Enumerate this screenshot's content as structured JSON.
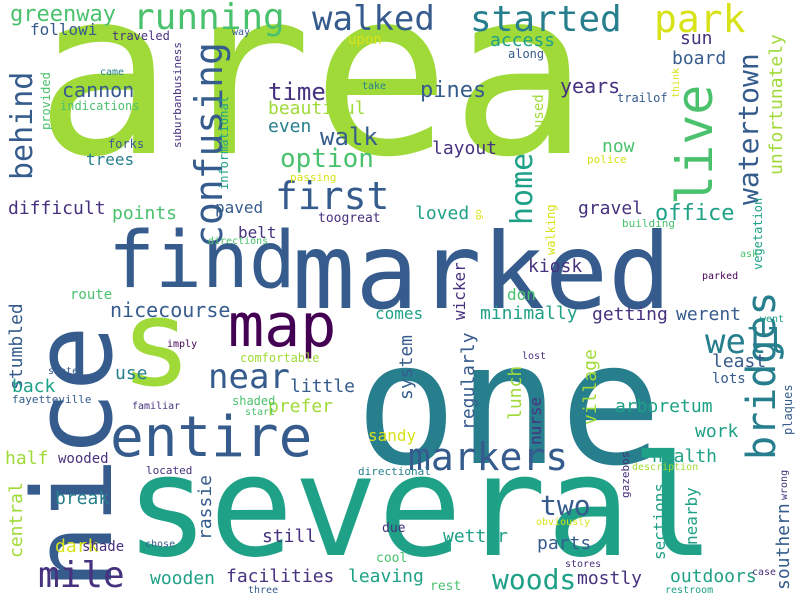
{
  "palette": {
    "background": "#ffffff",
    "lime": "#a0da39",
    "green": "#4ac16d",
    "teal": "#1fa187",
    "cyan": "#277f8e",
    "blue": "#365c8d",
    "indigo": "#46327e",
    "purple": "#440154",
    "yellow": "#d8e219"
  },
  "words": [
    {
      "text": "area",
      "color": "lime",
      "weight": 64
    },
    {
      "text": "marked",
      "color": "blue",
      "weight": 40
    },
    {
      "text": "one",
      "color": "cyan",
      "weight": 40
    },
    {
      "text": "several",
      "color": "teal",
      "weight": 36
    },
    {
      "text": "nice",
      "color": "blue",
      "weight": 34
    },
    {
      "text": "s",
      "color": "lime",
      "weight": 30
    },
    {
      "text": "find",
      "color": "blue",
      "weight": 24
    },
    {
      "text": "entire",
      "color": "blue",
      "weight": 18
    },
    {
      "text": "map",
      "color": "purple",
      "weight": 14
    },
    {
      "text": "live",
      "color": "green",
      "weight": 12
    },
    {
      "text": "bridges",
      "color": "cyan",
      "weight": 10
    },
    {
      "text": "markers",
      "color": "blue",
      "weight": 10
    },
    {
      "text": "mile",
      "color": "indigo",
      "weight": 10
    },
    {
      "text": "first",
      "color": "blue",
      "weight": 9
    },
    {
      "text": "confusing",
      "color": "blue",
      "weight": 8
    },
    {
      "text": "walked",
      "color": "blue",
      "weight": 8
    },
    {
      "text": "started",
      "color": "cyan",
      "weight": 8
    },
    {
      "text": "park",
      "color": "yellow",
      "weight": 8
    },
    {
      "text": "running",
      "color": "green",
      "weight": 8
    },
    {
      "text": "near",
      "color": "blue",
      "weight": 8
    },
    {
      "text": "home",
      "color": "teal",
      "weight": 8
    },
    {
      "text": "behind",
      "color": "blue",
      "weight": 7
    },
    {
      "text": "watertown",
      "color": "blue",
      "weight": 7
    },
    {
      "text": "well",
      "color": "cyan",
      "weight": 7
    },
    {
      "text": "option",
      "color": "green",
      "weight": 6
    },
    {
      "text": "woods",
      "color": "teal",
      "weight": 6
    },
    {
      "text": "two",
      "color": "blue",
      "weight": 6
    },
    {
      "text": "walk",
      "color": "blue",
      "weight": 6
    },
    {
      "text": "time",
      "color": "indigo",
      "weight": 6
    },
    {
      "text": "greenway",
      "color": "green",
      "weight": 5
    },
    {
      "text": "access",
      "color": "teal",
      "weight": 5
    },
    {
      "text": "years",
      "color": "indigo",
      "weight": 5
    },
    {
      "text": "pines",
      "color": "blue",
      "weight": 5
    },
    {
      "text": "sun",
      "color": "indigo",
      "weight": 5
    },
    {
      "text": "board",
      "color": "blue",
      "weight": 5
    },
    {
      "text": "unfortunately",
      "color": "lime",
      "weight": 5
    },
    {
      "text": "cannon",
      "color": "blue",
      "weight": 5
    },
    {
      "text": "beautiful",
      "color": "lime",
      "weight": 5
    },
    {
      "text": "even",
      "color": "cyan",
      "weight": 5
    },
    {
      "text": "layout",
      "color": "indigo",
      "weight": 5
    },
    {
      "text": "now",
      "color": "green",
      "weight": 5
    },
    {
      "text": "trees",
      "color": "cyan",
      "weight": 5
    },
    {
      "text": "difficult",
      "color": "indigo",
      "weight": 5
    },
    {
      "text": "points",
      "color": "green",
      "weight": 5
    },
    {
      "text": "paved",
      "color": "blue",
      "weight": 5
    },
    {
      "text": "loved",
      "color": "teal",
      "weight": 5
    },
    {
      "text": "gravel",
      "color": "indigo",
      "weight": 5
    },
    {
      "text": "office",
      "color": "teal",
      "weight": 5
    },
    {
      "text": "belt",
      "color": "indigo",
      "weight": 5
    },
    {
      "text": "kiosk",
      "color": "indigo",
      "weight": 5
    },
    {
      "text": "don",
      "color": "green",
      "weight": 5
    },
    {
      "text": "nicecourse",
      "color": "blue",
      "weight": 5
    },
    {
      "text": "minimally",
      "color": "teal",
      "weight": 5
    },
    {
      "text": "getting",
      "color": "indigo",
      "weight": 5
    },
    {
      "text": "werent",
      "color": "blue",
      "weight": 5
    },
    {
      "text": "comes",
      "color": "teal",
      "weight": 5
    },
    {
      "text": "stumbled",
      "color": "blue",
      "weight": 5
    },
    {
      "text": "wicker",
      "color": "indigo",
      "weight": 5
    },
    {
      "text": "least",
      "color": "blue",
      "weight": 5
    },
    {
      "text": "lots",
      "color": "blue",
      "weight": 4
    },
    {
      "text": "back",
      "color": "teal",
      "weight": 5
    },
    {
      "text": "use",
      "color": "cyan",
      "weight": 5
    },
    {
      "text": "little",
      "color": "blue",
      "weight": 5
    },
    {
      "text": "prefer",
      "color": "lime",
      "weight": 5
    },
    {
      "text": "system",
      "color": "blue",
      "weight": 5
    },
    {
      "text": "regularly",
      "color": "blue",
      "weight": 5
    },
    {
      "text": "lunch",
      "color": "lime",
      "weight": 5
    },
    {
      "text": "nurse",
      "color": "indigo",
      "weight": 4
    },
    {
      "text": "village",
      "color": "lime",
      "weight": 5
    },
    {
      "text": "arboretum",
      "color": "teal",
      "weight": 5
    },
    {
      "text": "work",
      "color": "teal",
      "weight": 5
    },
    {
      "text": "health",
      "color": "teal",
      "weight": 5
    },
    {
      "text": "half",
      "color": "lime",
      "weight": 5
    },
    {
      "text": "wooded",
      "color": "indigo",
      "weight": 4
    },
    {
      "text": "sandy",
      "color": "yellow",
      "weight": 5
    },
    {
      "text": "break",
      "color": "cyan",
      "weight": 5
    },
    {
      "text": "central",
      "color": "lime",
      "weight": 5
    },
    {
      "text": "dark",
      "color": "yellow",
      "weight": 5
    },
    {
      "text": "shade",
      "color": "indigo",
      "weight": 4
    },
    {
      "text": "rassie",
      "color": "blue",
      "weight": 5
    },
    {
      "text": "still",
      "color": "indigo",
      "weight": 5
    },
    {
      "text": "wetter",
      "color": "teal",
      "weight": 5
    },
    {
      "text": "parts",
      "color": "blue",
      "weight": 5
    },
    {
      "text": "sections",
      "color": "teal",
      "weight": 5
    },
    {
      "text": "nearby",
      "color": "teal",
      "weight": 5
    },
    {
      "text": "southern",
      "color": "blue",
      "weight": 5
    },
    {
      "text": "wooden",
      "color": "teal",
      "weight": 5
    },
    {
      "text": "facilities",
      "color": "indigo",
      "weight": 5
    },
    {
      "text": "leaving",
      "color": "teal",
      "weight": 5
    },
    {
      "text": "mostly",
      "color": "indigo",
      "weight": 5
    },
    {
      "text": "outdoors",
      "color": "teal",
      "weight": 5
    },
    {
      "text": "followi",
      "color": "blue",
      "weight": 4
    },
    {
      "text": "upon",
      "color": "yellow",
      "weight": 4
    },
    {
      "text": "along",
      "color": "blue",
      "weight": 3
    },
    {
      "text": "used",
      "color": "lime",
      "weight": 4
    },
    {
      "text": "traveled",
      "color": "indigo",
      "weight": 3
    },
    {
      "text": "provided",
      "color": "green",
      "weight": 3
    },
    {
      "text": "came",
      "color": "cyan",
      "weight": 2
    },
    {
      "text": "indications",
      "color": "green",
      "weight": 3
    },
    {
      "text": "take",
      "color": "cyan",
      "weight": 2
    },
    {
      "text": "trailof",
      "color": "blue",
      "weight": 3
    },
    {
      "text": "think",
      "color": "yellow",
      "weight": 2
    },
    {
      "text": "way",
      "color": "blue",
      "weight": 2
    },
    {
      "text": "forks",
      "color": "blue",
      "weight": 3
    },
    {
      "text": "suburbanbusiness",
      "color": "indigo",
      "weight": 3
    },
    {
      "text": "informational",
      "color": "teal",
      "weight": 3
    },
    {
      "text": "passing",
      "color": "yellow",
      "weight": 3
    },
    {
      "text": "police",
      "color": "yellow",
      "weight": 2
    },
    {
      "text": "toogreat",
      "color": "indigo",
      "weight": 3
    },
    {
      "text": "go",
      "color": "yellow",
      "weight": 2
    },
    {
      "text": "building",
      "color": "green",
      "weight": 2
    },
    {
      "text": "walking",
      "color": "yellow",
      "weight": 3
    },
    {
      "text": "directions",
      "color": "green",
      "weight": 2
    },
    {
      "text": "vegetation",
      "color": "teal",
      "weight": 3
    },
    {
      "text": "ask",
      "color": "green",
      "weight": 2
    },
    {
      "text": "parked",
      "color": "purple",
      "weight": 2
    },
    {
      "text": "route",
      "color": "green",
      "weight": 4
    },
    {
      "text": "went",
      "color": "teal",
      "weight": 2
    },
    {
      "text": "imply",
      "color": "purple",
      "weight": 2
    },
    {
      "text": "comfortable",
      "color": "lime",
      "weight": 3
    },
    {
      "text": "lost",
      "color": "indigo",
      "weight": 2
    },
    {
      "text": "states",
      "color": "blue",
      "weight": 2
    },
    {
      "text": "fayetteville",
      "color": "blue",
      "weight": 2
    },
    {
      "text": "shaded",
      "color": "green",
      "weight": 3
    },
    {
      "text": "start",
      "color": "green",
      "weight": 2
    },
    {
      "text": "familiar",
      "color": "indigo",
      "weight": 2
    },
    {
      "text": "plaques",
      "color": "blue",
      "weight": 3
    },
    {
      "text": "located",
      "color": "indigo",
      "weight": 2
    },
    {
      "text": "directional",
      "color": "cyan",
      "weight": 2
    },
    {
      "text": "gazebos",
      "color": "indigo",
      "weight": 2
    },
    {
      "text": "description",
      "color": "lime",
      "weight": 2
    },
    {
      "text": "wrong",
      "color": "indigo",
      "weight": 2
    },
    {
      "text": "due",
      "color": "indigo",
      "weight": 3
    },
    {
      "text": "obviously",
      "color": "yellow",
      "weight": 2
    },
    {
      "text": "chose",
      "color": "blue",
      "weight": 2
    },
    {
      "text": "cool",
      "color": "green",
      "weight": 3
    },
    {
      "text": "stores",
      "color": "indigo",
      "weight": 2
    },
    {
      "text": "case",
      "color": "indigo",
      "weight": 2
    },
    {
      "text": "rest",
      "color": "green",
      "weight": 3
    },
    {
      "text": "three",
      "color": "blue",
      "weight": 2
    },
    {
      "text": "restroom",
      "color": "teal",
      "weight": 2
    }
  ]
}
